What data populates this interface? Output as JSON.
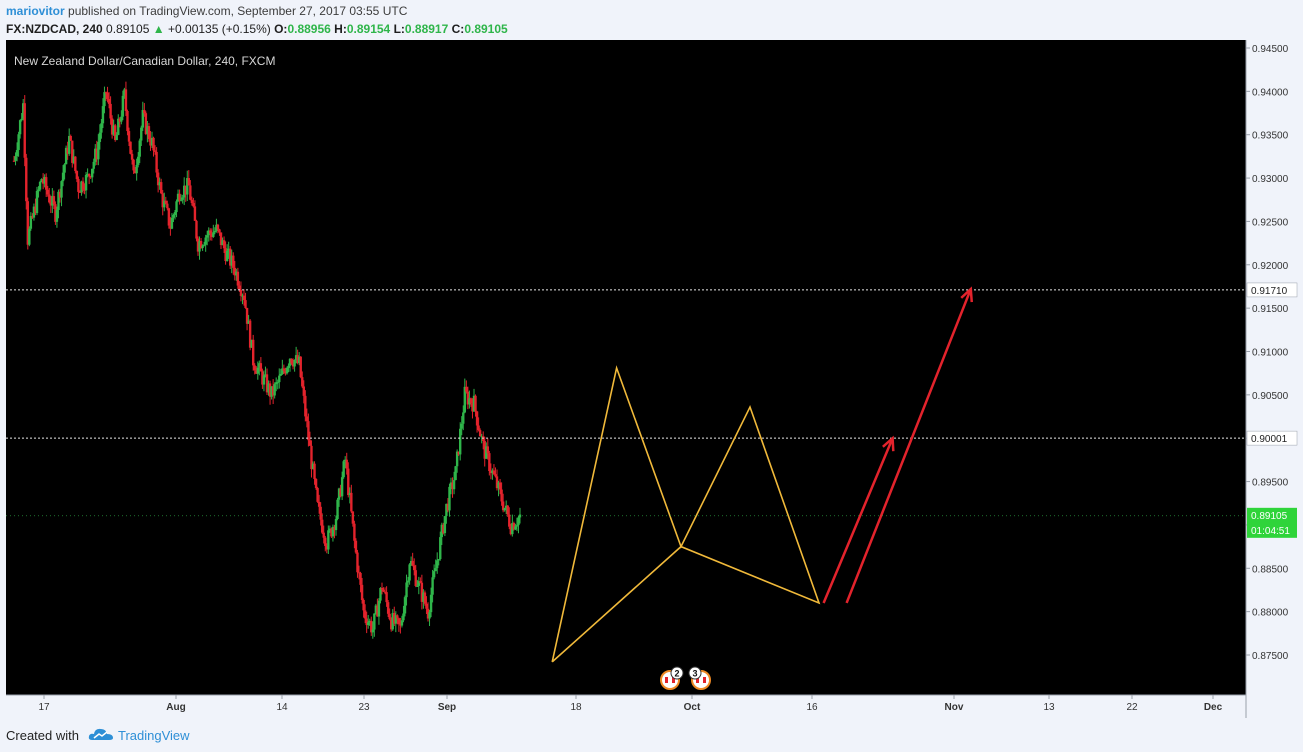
{
  "header": {
    "author": "mariovitor",
    "published_text": "published on TradingView.com, September 27, 2017 03:55 UTC",
    "symbol": "FX:NZDCAD, 240",
    "last": "0.89105",
    "change_arrow": "▲",
    "change": "+0.00135 (+0.15%)",
    "o_label": "O:",
    "o_value": "0.88956",
    "h_label": "H:",
    "h_value": "0.89154",
    "l_label": "L:",
    "l_value": "0.88917",
    "c_label": "C:",
    "c_value": "0.89105"
  },
  "chart_data": {
    "type": "candlestick",
    "title": "New Zealand Dollar/Canadian Dollar, 240, FXCM",
    "ylim": [
      0.87,
      0.945
    ],
    "y_ticks": [
      "0.94500",
      "0.94000",
      "0.93500",
      "0.93000",
      "0.92500",
      "0.92000",
      "0.91500",
      "0.91000",
      "0.90500",
      "0.90000",
      "0.89500",
      "0.89000",
      "0.88500",
      "0.88000",
      "0.87500"
    ],
    "x_ticks": [
      "17",
      "Aug",
      "14",
      "23",
      "Sep",
      "18",
      "Oct",
      "16",
      "Nov",
      "13",
      "22",
      "Dec"
    ],
    "up_color": "#2fb54a",
    "down_color": "#e3232c",
    "path": [
      {
        "d": 0,
        "v": 0.932
      },
      {
        "d": 2,
        "v": 0.9385
      },
      {
        "d": 3,
        "v": 0.923
      },
      {
        "d": 6,
        "v": 0.93
      },
      {
        "d": 9,
        "v": 0.926
      },
      {
        "d": 12,
        "v": 0.9345
      },
      {
        "d": 14,
        "v": 0.929
      },
      {
        "d": 16,
        "v": 0.93
      },
      {
        "d": 18,
        "v": 0.933
      },
      {
        "d": 20,
        "v": 0.94
      },
      {
        "d": 22,
        "v": 0.934
      },
      {
        "d": 24,
        "v": 0.9395
      },
      {
        "d": 26,
        "v": 0.93
      },
      {
        "d": 28,
        "v": 0.937
      },
      {
        "d": 30,
        "v": 0.934
      },
      {
        "d": 32,
        "v": 0.928
      },
      {
        "d": 34,
        "v": 0.9245
      },
      {
        "d": 36,
        "v": 0.9285
      },
      {
        "d": 38,
        "v": 0.929
      },
      {
        "d": 40,
        "v": 0.9225
      },
      {
        "d": 42,
        "v": 0.9235
      },
      {
        "d": 44,
        "v": 0.924
      },
      {
        "d": 46,
        "v": 0.9215
      },
      {
        "d": 48,
        "v": 0.9195
      },
      {
        "d": 50,
        "v": 0.9165
      },
      {
        "d": 52,
        "v": 0.909
      },
      {
        "d": 54,
        "v": 0.907
      },
      {
        "d": 56,
        "v": 0.905
      },
      {
        "d": 58,
        "v": 0.907
      },
      {
        "d": 60,
        "v": 0.9095
      },
      {
        "d": 62,
        "v": 0.9085
      },
      {
        "d": 64,
        "v": 0.9
      },
      {
        "d": 66,
        "v": 0.892
      },
      {
        "d": 68,
        "v": 0.888
      },
      {
        "d": 70,
        "v": 0.891
      },
      {
        "d": 72,
        "v": 0.8975
      },
      {
        "d": 74,
        "v": 0.888
      },
      {
        "d": 76,
        "v": 0.88
      },
      {
        "d": 78,
        "v": 0.878
      },
      {
        "d": 80,
        "v": 0.883
      },
      {
        "d": 82,
        "v": 0.879
      },
      {
        "d": 84,
        "v": 0.878
      },
      {
        "d": 86,
        "v": 0.886
      },
      {
        "d": 88,
        "v": 0.883
      },
      {
        "d": 90,
        "v": 0.88
      },
      {
        "d": 92,
        "v": 0.886
      },
      {
        "d": 94,
        "v": 0.892
      },
      {
        "d": 96,
        "v": 0.896
      },
      {
        "d": 98,
        "v": 0.905
      },
      {
        "d": 100,
        "v": 0.904
      },
      {
        "d": 102,
        "v": 0.899
      },
      {
        "d": 104,
        "v": 0.896
      },
      {
        "d": 106,
        "v": 0.893
      },
      {
        "d": 108,
        "v": 0.89
      },
      {
        "d": 110,
        "v": 0.891
      }
    ],
    "horizontal_lines": [
      {
        "value": 0.9171,
        "label": "0.91710"
      },
      {
        "value": 0.90001,
        "label": "0.90001"
      }
    ],
    "last_price": {
      "value": 0.89105,
      "label": "0.89105",
      "countdown": "01:04:51"
    },
    "pattern_color": "#f0b93a",
    "pattern_points": [
      [
        117,
        0.8742
      ],
      [
        131,
        0.9081
      ],
      [
        145,
        0.8875
      ],
      [
        160,
        0.9036
      ],
      [
        175,
        0.881
      ]
    ],
    "arrows_color": "#e3232c",
    "arrows": [
      {
        "from": [
          176,
          0.881
        ],
        "to": [
          191,
          0.9
        ]
      },
      {
        "from": [
          181,
          0.881
        ],
        "to": [
          208,
          0.9172
        ]
      }
    ],
    "event_badges": [
      "2",
      "3"
    ]
  },
  "footer": {
    "created_with": "Created with",
    "brand": "TradingView"
  }
}
